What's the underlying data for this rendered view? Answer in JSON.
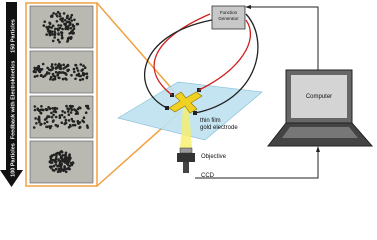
{
  "side_labels": {
    "top": "150 Particles",
    "middle": "Feedback with Electrokinetics",
    "bottom": "100 Particles"
  },
  "nodes": {
    "function_generator": [
      "Function",
      "Generator"
    ],
    "electrode": [
      "thin film",
      "gold electrode"
    ],
    "objective": "Objective",
    "ccd": "CCD",
    "computer": "Computer"
  }
}
